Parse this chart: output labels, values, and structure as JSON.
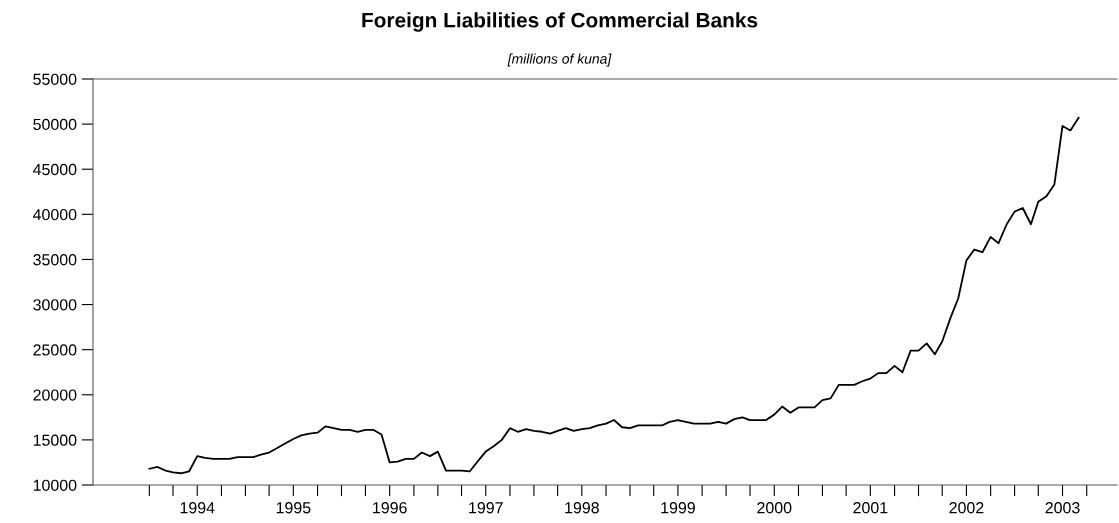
{
  "chart_data": {
    "type": "line",
    "title": "Foreign Liabilities of Commercial Banks",
    "subtitle": "[millions of kuna]",
    "x": [
      "1993-12",
      "1994-01",
      "1994-02",
      "1994-03",
      "1994-04",
      "1994-05",
      "1994-06",
      "1994-07",
      "1994-08",
      "1994-09",
      "1994-10",
      "1994-11",
      "1994-12",
      "1995-01",
      "1995-02",
      "1995-03",
      "1995-04",
      "1995-05",
      "1995-06",
      "1995-07",
      "1995-08",
      "1995-09",
      "1995-10",
      "1995-11",
      "1995-12",
      "1996-01",
      "1996-02",
      "1996-03",
      "1996-04",
      "1996-05",
      "1996-06",
      "1996-07",
      "1996-08",
      "1996-09",
      "1996-10",
      "1996-11",
      "1996-12",
      "1997-01",
      "1997-02",
      "1997-03",
      "1997-04",
      "1997-05",
      "1997-06",
      "1997-07",
      "1997-08",
      "1997-09",
      "1997-10",
      "1997-11",
      "1997-12",
      "1998-01",
      "1998-02",
      "1998-03",
      "1998-04",
      "1998-05",
      "1998-06",
      "1998-07",
      "1998-08",
      "1998-09",
      "1998-10",
      "1998-11",
      "1998-12",
      "1999-01",
      "1999-02",
      "1999-03",
      "1999-04",
      "1999-05",
      "1999-06",
      "1999-07",
      "1999-08",
      "1999-09",
      "1999-10",
      "1999-11",
      "1999-12",
      "2000-01",
      "2000-02",
      "2000-03",
      "2000-04",
      "2000-05",
      "2000-06",
      "2000-07",
      "2000-08",
      "2000-09",
      "2000-10",
      "2000-11",
      "2000-12",
      "2001-01",
      "2001-02",
      "2001-03",
      "2001-04",
      "2001-05",
      "2001-06",
      "2001-07",
      "2001-08",
      "2001-09",
      "2001-10",
      "2001-11",
      "2001-12",
      "2002-01",
      "2002-02",
      "2002-03",
      "2002-04",
      "2002-05",
      "2002-06",
      "2002-07",
      "2002-08",
      "2002-09",
      "2002-10",
      "2002-11",
      "2002-12",
      "2003-01",
      "2003-02",
      "2003-03",
      "2003-04",
      "2003-05",
      "2003-06",
      "2003-07",
      "2003-08"
    ],
    "values": [
      11800,
      12000,
      11600,
      11400,
      11300,
      11500,
      13200,
      13000,
      12900,
      12900,
      12900,
      13100,
      13100,
      13100,
      13400,
      13600,
      14100,
      14600,
      15100,
      15500,
      15700,
      15800,
      16500,
      16300,
      16100,
      16100,
      15900,
      16100,
      16100,
      15600,
      12500,
      12600,
      12900,
      12900,
      13600,
      13200,
      13700,
      11600,
      11600,
      11600,
      11500,
      12600,
      13700,
      14300,
      15000,
      16300,
      15900,
      16200,
      16000,
      15900,
      15700,
      16000,
      16300,
      16000,
      16200,
      16300,
      16600,
      16800,
      17200,
      16400,
      16300,
      16600,
      16600,
      16600,
      16600,
      17000,
      17200,
      17000,
      16800,
      16800,
      16800,
      17000,
      16800,
      17300,
      17500,
      17200,
      17200,
      17200,
      17800,
      18700,
      18000,
      18600,
      18600,
      18600,
      19400,
      19600,
      21100,
      21100,
      21100,
      21500,
      21800,
      22400,
      22400,
      23200,
      22500,
      24900,
      24900,
      25700,
      24500,
      25900,
      28500,
      30700,
      34900,
      36100,
      35800,
      37500,
      36800,
      38900,
      40300,
      40700,
      38900,
      41400,
      42000,
      43300,
      49800,
      49300,
      50700
    ],
    "color": "#000000",
    "xlim": [
      "1993-05-01",
      "2003-12-25"
    ],
    "xticks": [
      {
        "value": "1993-12-01",
        "label": null
      },
      {
        "value": "1994-03-01",
        "label": null
      },
      {
        "value": "1994-06-01",
        "label": "1994"
      },
      {
        "value": "1994-09-01",
        "label": null
      },
      {
        "value": "1994-12-01",
        "label": null
      },
      {
        "value": "1995-03-01",
        "label": null
      },
      {
        "value": "1995-06-01",
        "label": "1995"
      },
      {
        "value": "1995-09-01",
        "label": null
      },
      {
        "value": "1995-12-01",
        "label": null
      },
      {
        "value": "1996-03-01",
        "label": null
      },
      {
        "value": "1996-06-01",
        "label": "1996"
      },
      {
        "value": "1996-09-01",
        "label": null
      },
      {
        "value": "1996-12-01",
        "label": null
      },
      {
        "value": "1997-03-01",
        "label": null
      },
      {
        "value": "1997-06-01",
        "label": "1997"
      },
      {
        "value": "1997-09-01",
        "label": null
      },
      {
        "value": "1997-12-01",
        "label": null
      },
      {
        "value": "1998-03-01",
        "label": null
      },
      {
        "value": "1998-06-01",
        "label": "1998"
      },
      {
        "value": "1998-09-01",
        "label": null
      },
      {
        "value": "1998-12-01",
        "label": null
      },
      {
        "value": "1999-03-01",
        "label": null
      },
      {
        "value": "1999-06-01",
        "label": "1999"
      },
      {
        "value": "1999-09-01",
        "label": null
      },
      {
        "value": "1999-12-01",
        "label": null
      },
      {
        "value": "2000-03-01",
        "label": null
      },
      {
        "value": "2000-06-01",
        "label": "2000"
      },
      {
        "value": "2000-09-01",
        "label": null
      },
      {
        "value": "2000-12-01",
        "label": null
      },
      {
        "value": "2001-03-01",
        "label": null
      },
      {
        "value": "2001-06-01",
        "label": "2001"
      },
      {
        "value": "2001-09-01",
        "label": null
      },
      {
        "value": "2001-12-01",
        "label": null
      },
      {
        "value": "2002-03-01",
        "label": null
      },
      {
        "value": "2002-06-01",
        "label": "2002"
      },
      {
        "value": "2002-09-01",
        "label": null
      },
      {
        "value": "2002-12-01",
        "label": null
      },
      {
        "value": "2003-03-01",
        "label": null
      },
      {
        "value": "2003-06-01",
        "label": "2003"
      },
      {
        "value": "2003-09-01",
        "label": null
      }
    ],
    "ylim": [
      10000,
      55000
    ],
    "yticks": [
      10000,
      15000,
      20000,
      25000,
      30000,
      35000,
      40000,
      45000,
      50000,
      55000
    ],
    "grid": false,
    "legend": false,
    "marker": "none",
    "line_style": "solid"
  }
}
